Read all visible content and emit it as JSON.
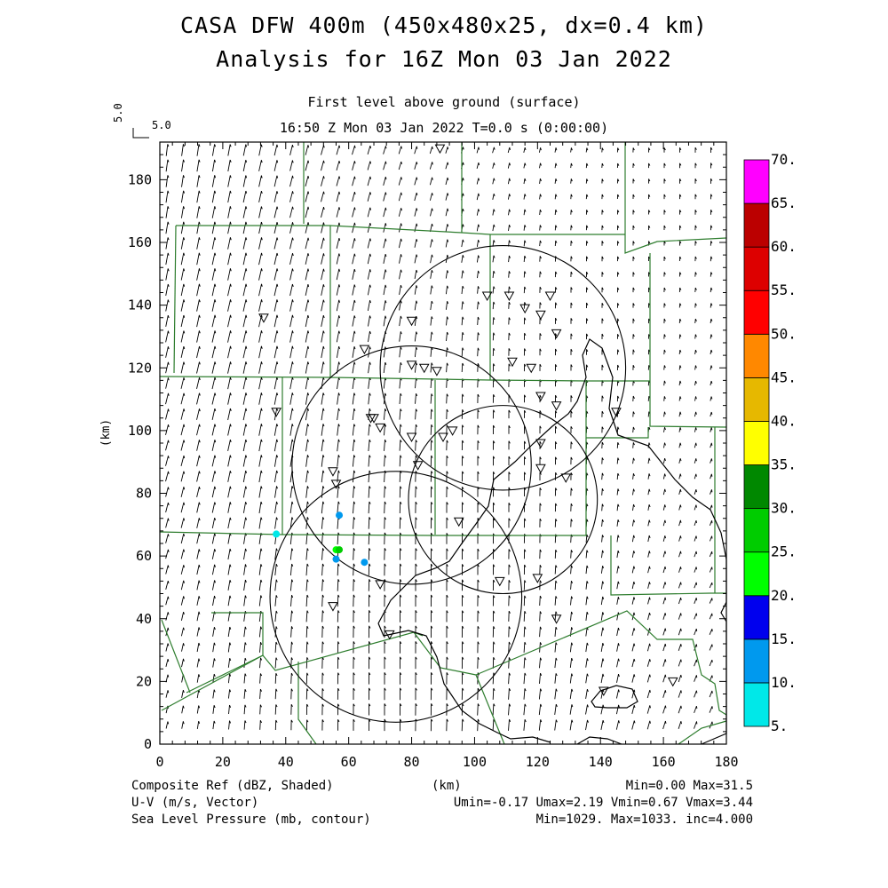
{
  "header": {
    "title_line1": "CASA DFW 400m (450x480x25, dx=0.4 km)",
    "title_line2": "Analysis for 16Z Mon 03 Jan 2022",
    "level": "First level above ground (surface)",
    "time": "16:50 Z Mon 03 Jan 2022    T=0.0 s (0:00:00)",
    "vector_ref": "5.0"
  },
  "axes": {
    "x_label": "(km)",
    "y_label": "(km)",
    "x_ticks": [
      "0",
      "20",
      "40",
      "60",
      "80",
      "100",
      "120",
      "140",
      "160",
      "180"
    ],
    "y_ticks": [
      "0",
      "20",
      "40",
      "60",
      "80",
      "100",
      "120",
      "140",
      "160",
      "180"
    ],
    "xlim": [
      0,
      180
    ],
    "ylim": [
      0,
      192
    ]
  },
  "colorbar": {
    "labels": [
      "5.",
      "10.",
      "15.",
      "20.",
      "25.",
      "30.",
      "35.",
      "40.",
      "45.",
      "50.",
      "55.",
      "60.",
      "65.",
      "70."
    ],
    "colors": [
      "#00e8e8",
      "#0099ee",
      "#0000ee",
      "#00ff00",
      "#00cc00",
      "#008800",
      "#ffff00",
      "#e6b800",
      "#ff8800",
      "#ff0000",
      "#dd0000",
      "#bb0000",
      "#ff00ff"
    ]
  },
  "footer": {
    "field1": "Composite Ref (dBZ, Shaded)",
    "field2": "U-V (m/s, Vector)",
    "field3": "Sea Level Pressure (mb, contour)",
    "units": "(km)",
    "stats1": "Min=0.00 Max=31.5",
    "stats2": "Umin=-0.17 Umax=2.19 Vmin=0.67 Vmax=3.44",
    "stats3": "Min=1029. Max=1033. inc=4.000"
  },
  "map_data": {
    "radar_rings": [
      {
        "cx": 80,
        "cy": 89,
        "r": 38
      },
      {
        "cx": 75,
        "cy": 47,
        "r": 40
      },
      {
        "cx": 109,
        "cy": 120,
        "r": 39
      },
      {
        "cx": 109,
        "cy": 78,
        "r": 30
      }
    ],
    "stations": [
      [
        89,
        190
      ],
      [
        33,
        136
      ],
      [
        65,
        126
      ],
      [
        80,
        135
      ],
      [
        104,
        143
      ],
      [
        111,
        143
      ],
      [
        116,
        139
      ],
      [
        121,
        137
      ],
      [
        124,
        143
      ],
      [
        126,
        131
      ],
      [
        80,
        121
      ],
      [
        84,
        120
      ],
      [
        88,
        119
      ],
      [
        112,
        122
      ],
      [
        118,
        120
      ],
      [
        37,
        106
      ],
      [
        67,
        104
      ],
      [
        68,
        104
      ],
      [
        70,
        101
      ],
      [
        121,
        111
      ],
      [
        126,
        108
      ],
      [
        145,
        106
      ],
      [
        80,
        98
      ],
      [
        90,
        98
      ],
      [
        93,
        100
      ],
      [
        121,
        96
      ],
      [
        82,
        89
      ],
      [
        121,
        88
      ],
      [
        129,
        85
      ],
      [
        55,
        87
      ],
      [
        56,
        83
      ],
      [
        95,
        71
      ],
      [
        108,
        52
      ],
      [
        120,
        53
      ],
      [
        70,
        51
      ],
      [
        55,
        44
      ],
      [
        126,
        40
      ],
      [
        73,
        35
      ],
      [
        141,
        17
      ],
      [
        163,
        20
      ]
    ],
    "reflectivity_cells": [
      {
        "x": 57,
        "y": 73,
        "dbz": 12
      },
      {
        "x": 56,
        "y": 62,
        "dbz": 22
      },
      {
        "x": 57,
        "y": 62,
        "dbz": 28
      },
      {
        "x": 56,
        "y": 59,
        "dbz": 12
      },
      {
        "x": 65,
        "y": 58,
        "dbz": 12
      },
      {
        "x": 37,
        "y": 67,
        "dbz": 8
      }
    ]
  }
}
